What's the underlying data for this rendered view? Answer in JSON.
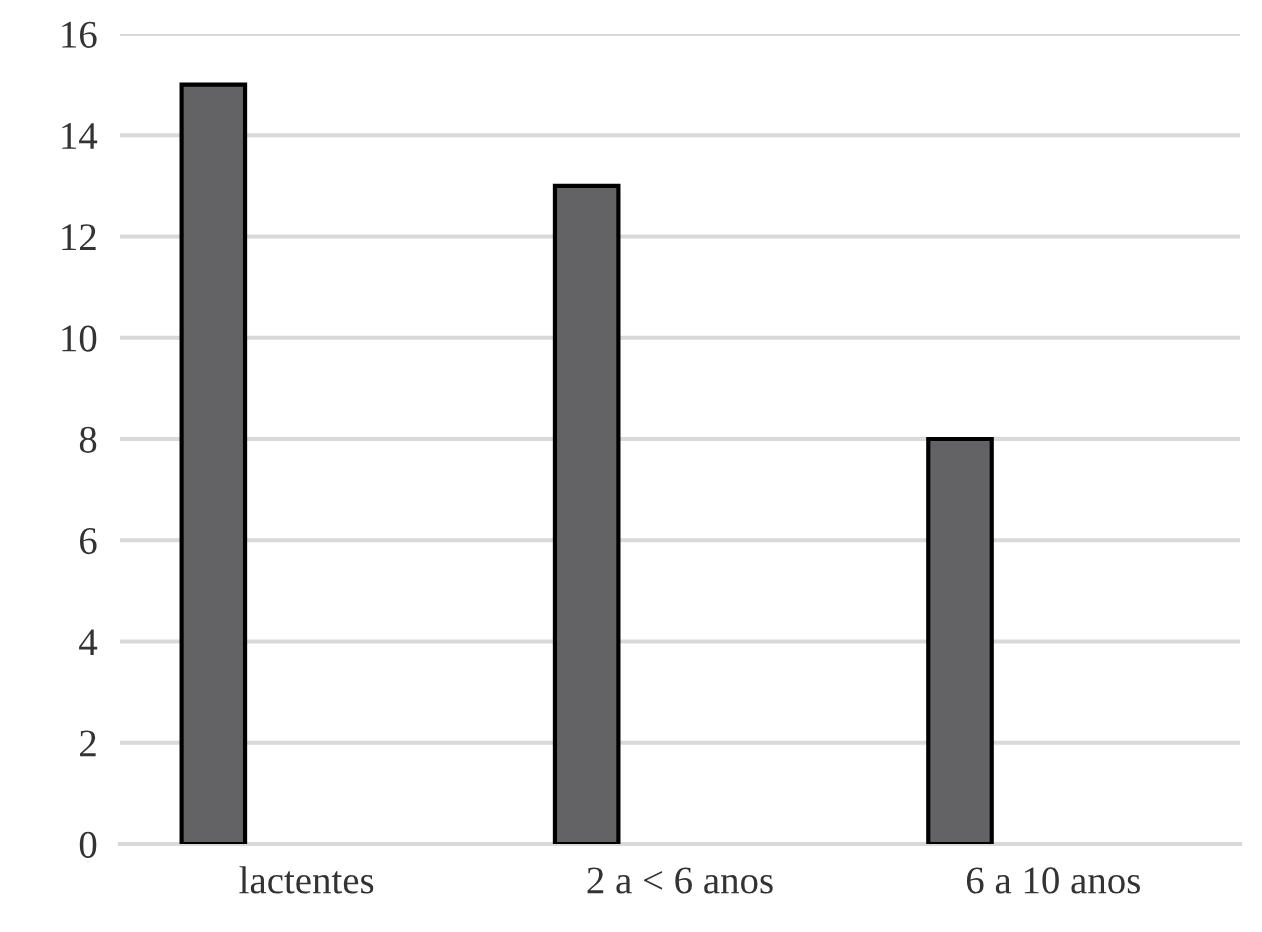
{
  "chart_data": {
    "type": "bar",
    "categories": [
      "lactentes",
      "2 a < 6 anos",
      "6 a 10 anos"
    ],
    "values": [
      15,
      13,
      8
    ],
    "color": "#636366",
    "ylim": [
      0,
      16
    ],
    "yticks": [
      0,
      2,
      4,
      6,
      8,
      10,
      12,
      14,
      16
    ],
    "grid": "y"
  }
}
